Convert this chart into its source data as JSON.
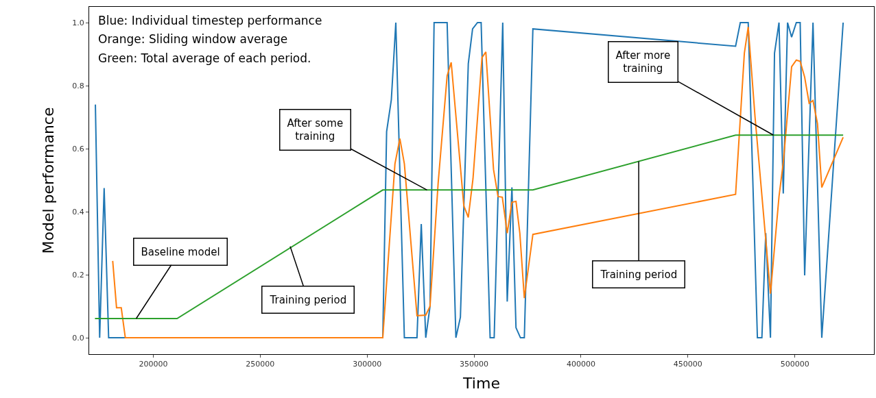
{
  "chart_data": {
    "type": "line",
    "xlabel": "Time",
    "ylabel": "Model performance",
    "xlim": [
      170000,
      537000
    ],
    "ylim": [
      -0.052,
      1.05
    ],
    "xticks": [
      200000,
      250000,
      300000,
      350000,
      400000,
      450000,
      500000
    ],
    "yticks": [
      {
        "value": 0,
        "label": "0.0"
      },
      {
        "value": 0.2,
        "label": "0.2"
      },
      {
        "value": 0.4,
        "label": "0.4"
      },
      {
        "value": 0.6,
        "label": "0.6"
      },
      {
        "value": 0.8,
        "label": "0.8"
      },
      {
        "value": 1,
        "label": "1.0"
      }
    ],
    "grid": false,
    "marker": "none",
    "line_style": "solid",
    "series": [
      {
        "color": "#1f77b4",
        "x": [
          172900,
          174900,
          177000,
          179100,
          307300,
          309100,
          311300,
          313400,
          317400,
          323300,
          325300,
          327400,
          329400,
          331300,
          337400,
          341500,
          343600,
          347300,
          349300,
          351600,
          353300,
          357500,
          359400,
          363400,
          365500,
          367700,
          369600,
          371700,
          373500,
          377500,
          472300,
          474500,
          478200,
          482500,
          484600,
          486400,
          488600,
          490500,
          492600,
          494600,
          496600,
          498500,
          500700,
          502500,
          504600,
          508500,
          512600,
          522600
        ],
        "values": [
          0.74,
          0,
          0.475,
          0,
          0,
          0.654,
          0.755,
          1.0,
          0,
          0,
          0.361,
          0,
          0.1,
          1.0,
          1.0,
          0,
          0.065,
          0.87,
          0.98,
          1.0,
          1.0,
          0,
          0,
          1.0,
          0.115,
          0.477,
          0.032,
          0,
          0,
          0.98,
          0.925,
          1.0,
          1.0,
          0,
          0,
          0.332,
          0,
          0.903,
          1.0,
          0.458,
          1.0,
          0.954,
          1.0,
          1.0,
          0.198,
          1.0,
          0,
          1.0
        ]
      },
      {
        "color": "#ff7f0e",
        "x": [
          181000,
          182800,
          185000,
          186900,
          307300,
          313000,
          315300,
          317400,
          323300,
          327400,
          329400,
          333200,
          337400,
          339300,
          345200,
          347300,
          349500,
          353700,
          355500,
          359100,
          361200,
          363200,
          365500,
          367700,
          369600,
          371400,
          373500,
          377500,
          472300,
          476400,
          478200,
          481400,
          488600,
          492600,
          494600,
          498500,
          500700,
          502500,
          504600,
          506700,
          508500,
          510600,
          512600,
          522600
        ],
        "values": [
          0.244,
          0.095,
          0.095,
          0,
          0,
          0.552,
          0.632,
          0.552,
          0.07,
          0.072,
          0.1,
          0.491,
          0.831,
          0.874,
          0.419,
          0.382,
          0.505,
          0.889,
          0.907,
          0.534,
          0.448,
          0.446,
          0.332,
          0.43,
          0.433,
          0.332,
          0.126,
          0.328,
          0.455,
          0.903,
          0.986,
          0.7,
          0.14,
          0.448,
          0.556,
          0.86,
          0.881,
          0.877,
          0.827,
          0.744,
          0.753,
          0.679,
          0.477,
          0.636
        ]
      },
      {
        "color": "#2ca02c",
        "x": [
          172700,
          211100,
          307300,
          377500,
          472300,
          522600
        ],
        "values": [
          0.061,
          0.061,
          0.469,
          0.469,
          0.643,
          0.643
        ]
      }
    ],
    "annotations": [
      "Blue: Individual timestep performance",
      "Orange: Sliding window average",
      "Green: Total average of each period.",
      {
        "text": "Baseline model",
        "x": 192000,
        "y": 0.061
      },
      {
        "text": "Training period",
        "x": 264000,
        "y": 0.29
      },
      {
        "text": "After some training",
        "x": 328000,
        "y": 0.469
      },
      {
        "text": "Training period",
        "x": 427000,
        "y": 0.56
      },
      {
        "text": "After more training",
        "x": 490000,
        "y": 0.643
      }
    ]
  }
}
